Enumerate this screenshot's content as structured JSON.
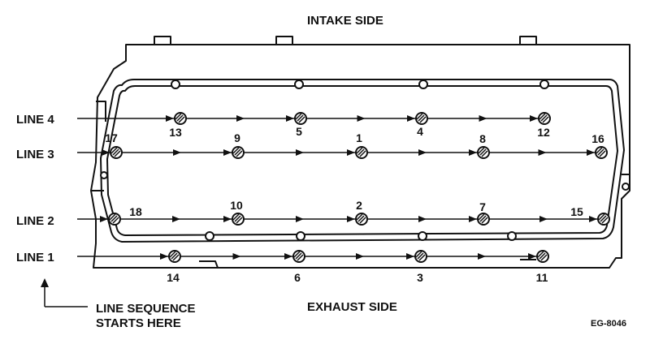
{
  "diagram": {
    "top_label": "INTAKE SIDE",
    "bottom_label": "EXHAUST SIDE",
    "figure_code": "EG-8046",
    "note_line1": "LINE SEQUENCE",
    "note_line2": "STARTS HERE",
    "lines": [
      {
        "id": "line-4",
        "label": "LINE 4",
        "bolts": [
          "13",
          "5",
          "4",
          "12"
        ]
      },
      {
        "id": "line-3",
        "label": "LINE 3",
        "bolts": [
          "17",
          "9",
          "1",
          "8",
          "16"
        ]
      },
      {
        "id": "line-2",
        "label": "LINE 2",
        "bolts": [
          "18",
          "10",
          "2",
          "7",
          "15"
        ]
      },
      {
        "id": "line-1",
        "label": "LINE 1",
        "bolts": [
          "14",
          "6",
          "3",
          "11"
        ]
      }
    ]
  }
}
